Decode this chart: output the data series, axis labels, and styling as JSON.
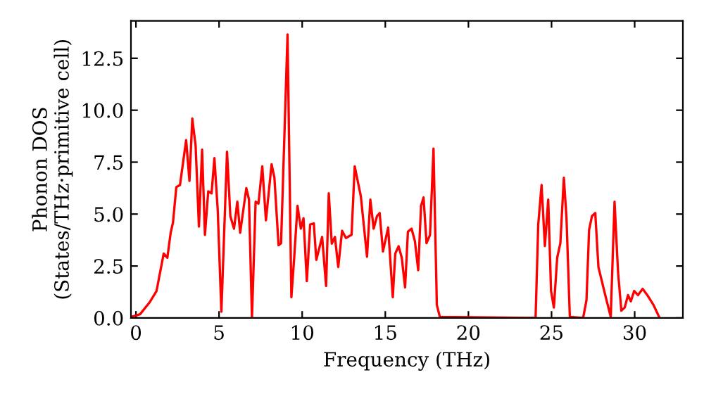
{
  "chart_data": {
    "type": "line",
    "xlabel": "Frequency (THz)",
    "ylabel": "Phonon DOS\n(States/THz·primitive cell)",
    "x": [
      -0.3,
      0.25,
      0.82,
      1.24,
      1.67,
      1.89,
      2.09,
      2.23,
      2.43,
      2.65,
      3.02,
      3.22,
      3.39,
      3.59,
      3.79,
      3.98,
      4.15,
      4.35,
      4.55,
      4.72,
      4.92,
      5.14,
      5.48,
      5.68,
      5.9,
      6.1,
      6.27,
      6.64,
      6.8,
      6.98,
      7.2,
      7.37,
      7.6,
      7.82,
      8.16,
      8.33,
      8.58,
      8.73,
      9.12,
      9.35,
      9.52,
      9.72,
      9.92,
      10.08,
      10.28,
      10.48,
      10.7,
      10.85,
      11.2,
      11.44,
      11.6,
      11.78,
      11.97,
      12.17,
      12.4,
      12.63,
      12.97,
      13.16,
      13.53,
      13.9,
      14.1,
      14.3,
      14.5,
      14.66,
      14.86,
      15.17,
      15.45,
      15.6,
      15.8,
      15.99,
      16.19,
      16.36,
      16.58,
      16.78,
      16.98,
      17.15,
      17.3,
      17.48,
      17.69,
      17.9,
      18.1,
      18.28,
      24.04,
      24.2,
      24.4,
      24.6,
      24.8,
      24.97,
      25.14,
      25.34,
      25.53,
      25.74,
      25.9,
      26.1,
      26.9,
      27.1,
      27.26,
      27.43,
      27.63,
      27.82,
      28.2,
      28.56,
      28.79,
      29.0,
      29.2,
      29.4,
      29.6,
      29.77,
      29.97,
      30.2,
      30.48,
      30.76,
      31.13,
      31.47
    ],
    "series": [
      {
        "color": "#ff0000",
        "values": [
          0.05,
          0.18,
          0.75,
          1.3,
          3.1,
          2.9,
          4.1,
          4.6,
          6.3,
          6.4,
          8.56,
          6.6,
          9.6,
          8.3,
          4.4,
          8.1,
          4.0,
          6.1,
          6.0,
          7.7,
          5.2,
          0.3,
          8.0,
          4.9,
          4.3,
          5.6,
          4.1,
          6.25,
          5.7,
          0,
          5.6,
          5.5,
          7.3,
          4.7,
          7.4,
          6.75,
          3.5,
          3.6,
          13.65,
          1.0,
          2.9,
          5.4,
          4.3,
          4.8,
          1.77,
          4.5,
          4.55,
          2.8,
          3.9,
          1.54,
          6.0,
          3.58,
          3.9,
          2.45,
          4.2,
          3.85,
          4.0,
          7.3,
          5.85,
          2.95,
          5.7,
          4.3,
          4.9,
          5.05,
          3.2,
          4.35,
          1.0,
          3.1,
          3.45,
          2.9,
          1.47,
          4.15,
          4.3,
          3.7,
          2.3,
          5.4,
          5.8,
          3.6,
          4.0,
          8.15,
          0.63,
          0.05,
          0,
          4.5,
          6.4,
          3.46,
          5.7,
          1.3,
          0.5,
          2.9,
          3.6,
          6.75,
          4.8,
          0.05,
          0,
          0.85,
          4.25,
          4.9,
          5.05,
          2.45,
          1.2,
          0.05,
          5.6,
          2.2,
          0.35,
          0.5,
          1.1,
          0.8,
          1.3,
          1.1,
          1.4,
          1.1,
          0.63,
          0.05
        ]
      }
    ],
    "xlim": [
      -0.3,
      32.9
    ],
    "ylim": [
      0,
      14.3
    ],
    "xticks": [
      0,
      5,
      10,
      15,
      20,
      25,
      30
    ],
    "yticks": [
      {
        "value": 0,
        "label": "0.0"
      },
      {
        "value": 2.5,
        "label": "2.5"
      },
      {
        "value": 5,
        "label": "5.0"
      },
      {
        "value": 7.5,
        "label": "7.5"
      },
      {
        "value": 10,
        "label": "10.0"
      },
      {
        "value": 12.5,
        "label": "12.5"
      }
    ],
    "grid": false,
    "marker": "none",
    "line_style": "solid"
  }
}
